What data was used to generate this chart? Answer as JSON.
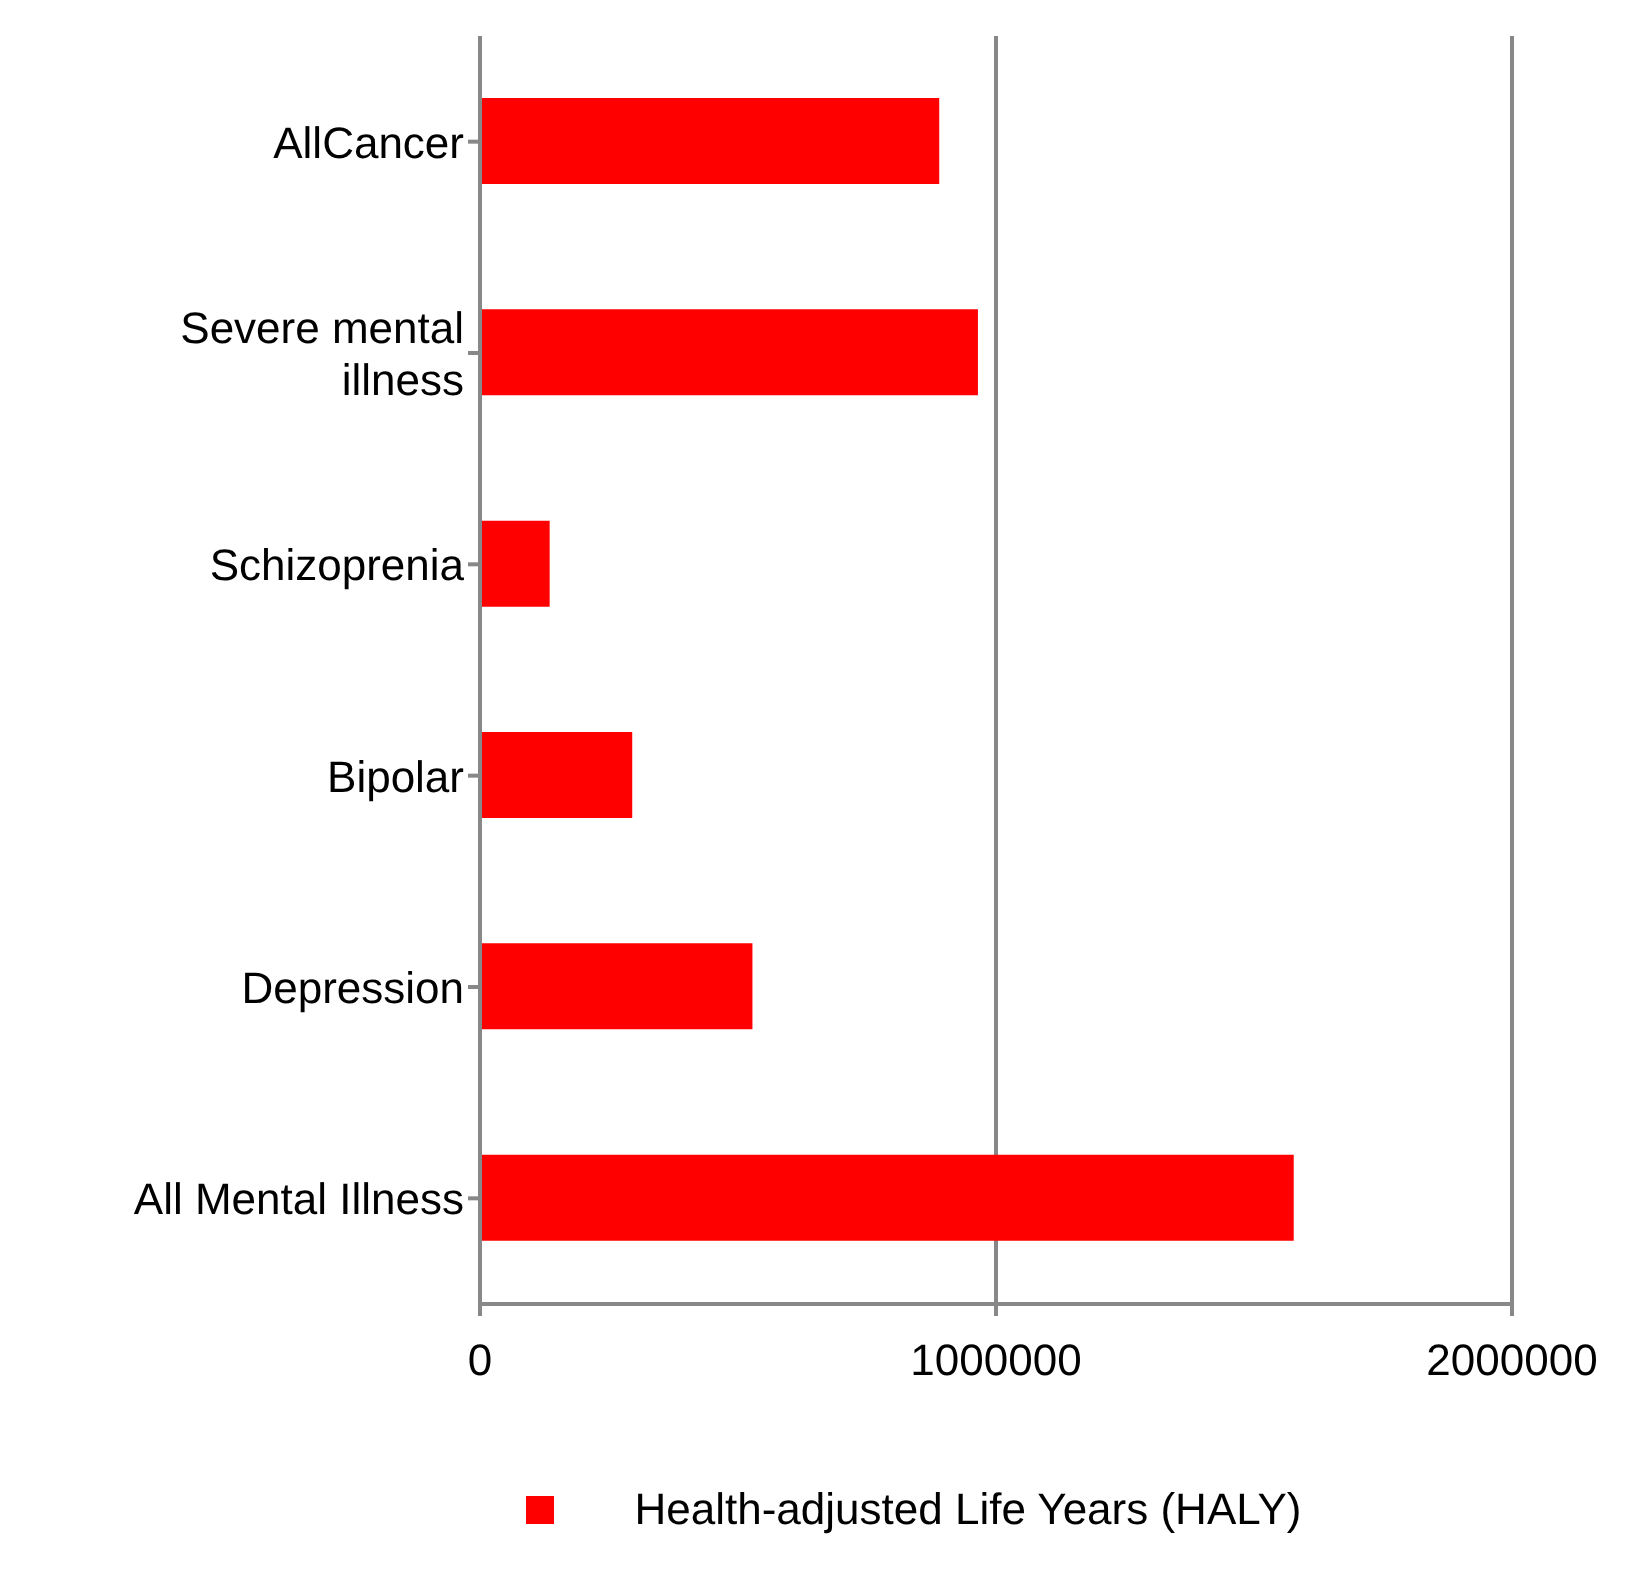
{
  "chart_data": {
    "type": "bar",
    "orientation": "horizontal",
    "categories": [
      "AllCancer",
      "Severe mental illness",
      "Schizoprenia",
      "Bipolar",
      "Depression",
      "All Mental Illness"
    ],
    "series": [
      {
        "name": "Health-adjusted Life Years (HALY)",
        "color": "#ff0000",
        "values": [
          890000,
          965000,
          135000,
          295000,
          528000,
          1577000
        ]
      }
    ],
    "xlim": [
      0,
      2000000
    ],
    "xticks": [
      0,
      1000000,
      2000000
    ],
    "grid": "x",
    "legend": "bottom"
  }
}
